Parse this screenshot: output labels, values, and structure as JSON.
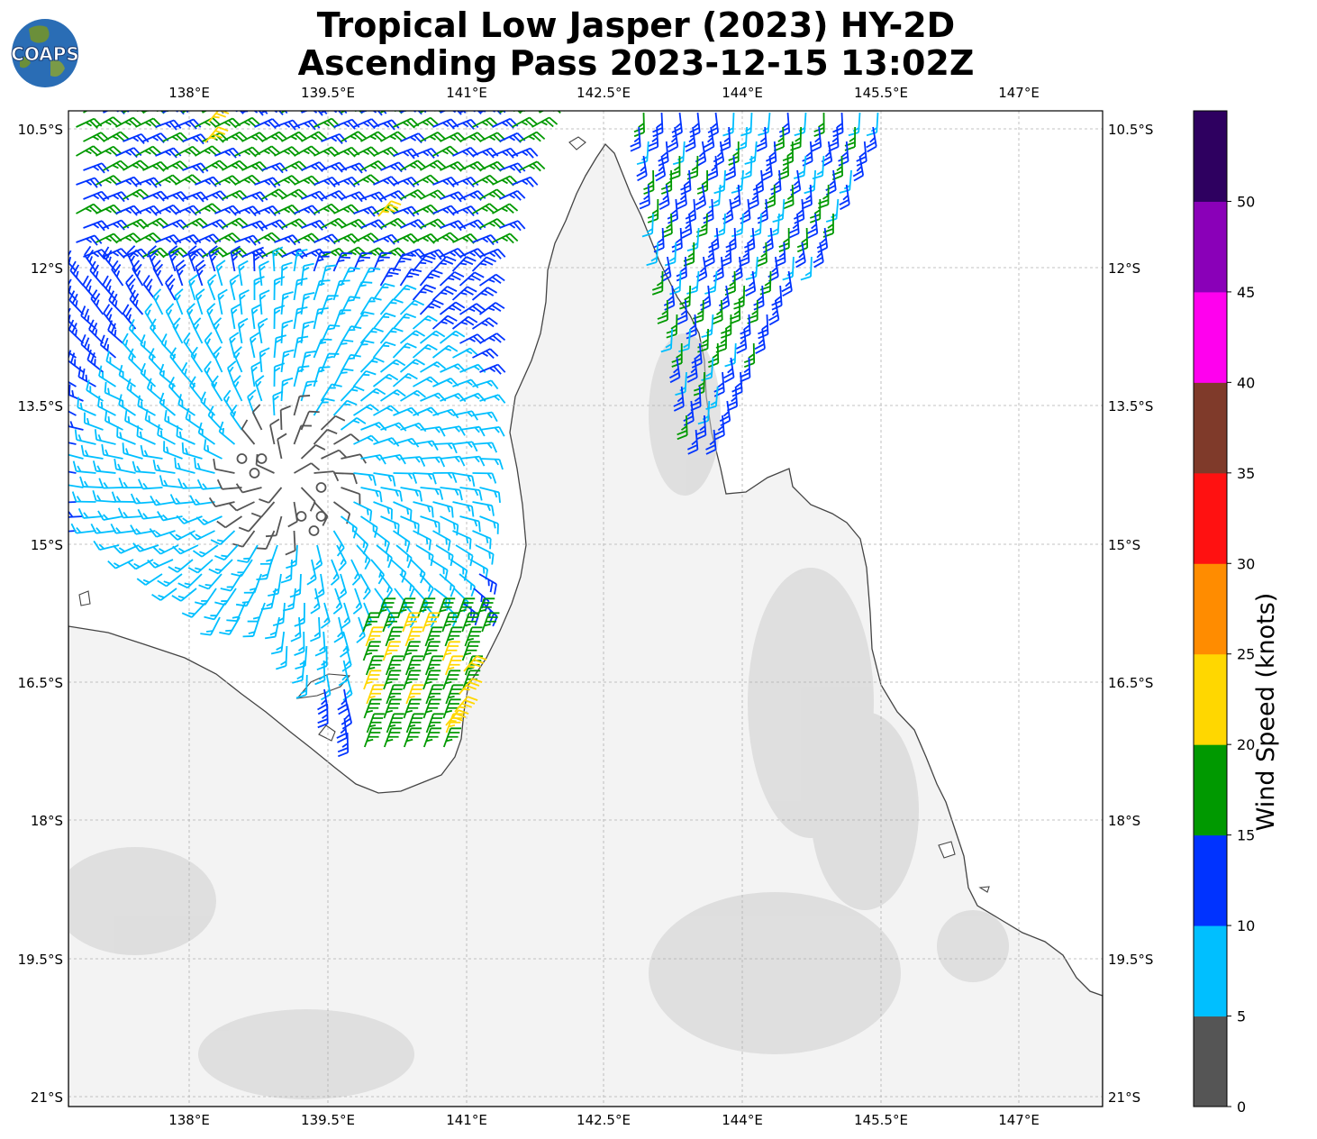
{
  "title_line1": "Tropical Low Jasper (2023) HY-2D",
  "title_line2": "Ascending Pass 2023-12-15 13:02Z",
  "logo_text": "COAPS",
  "map": {
    "lon_ticks": [
      "138°E",
      "139.5°E",
      "141°E",
      "142.5°E",
      "144°E",
      "145.5°E",
      "147°E"
    ],
    "lat_ticks": [
      "10.5°S",
      "12°S",
      "13.5°S",
      "15°S",
      "16.5°S",
      "18°S",
      "19.5°S",
      "21°S"
    ],
    "land_color": "#f4f4f4",
    "terrain_color": "#cfcfcf",
    "coast_color": "#444444",
    "grid_color": "#b0b0b0"
  },
  "colorbar": {
    "label": "Wind Speed (knots)",
    "tick_labels": [
      "0",
      "5",
      "10",
      "15",
      "20",
      "25",
      "30",
      "35",
      "40",
      "45",
      "50"
    ],
    "colors": [
      "#555555",
      "#00bfff",
      "#0033ff",
      "#009900",
      "#ffd700",
      "#ff8c00",
      "#ff1111",
      "#7f3a2a",
      "#ff00ee",
      "#8a00b8",
      "#2e0060"
    ]
  }
}
